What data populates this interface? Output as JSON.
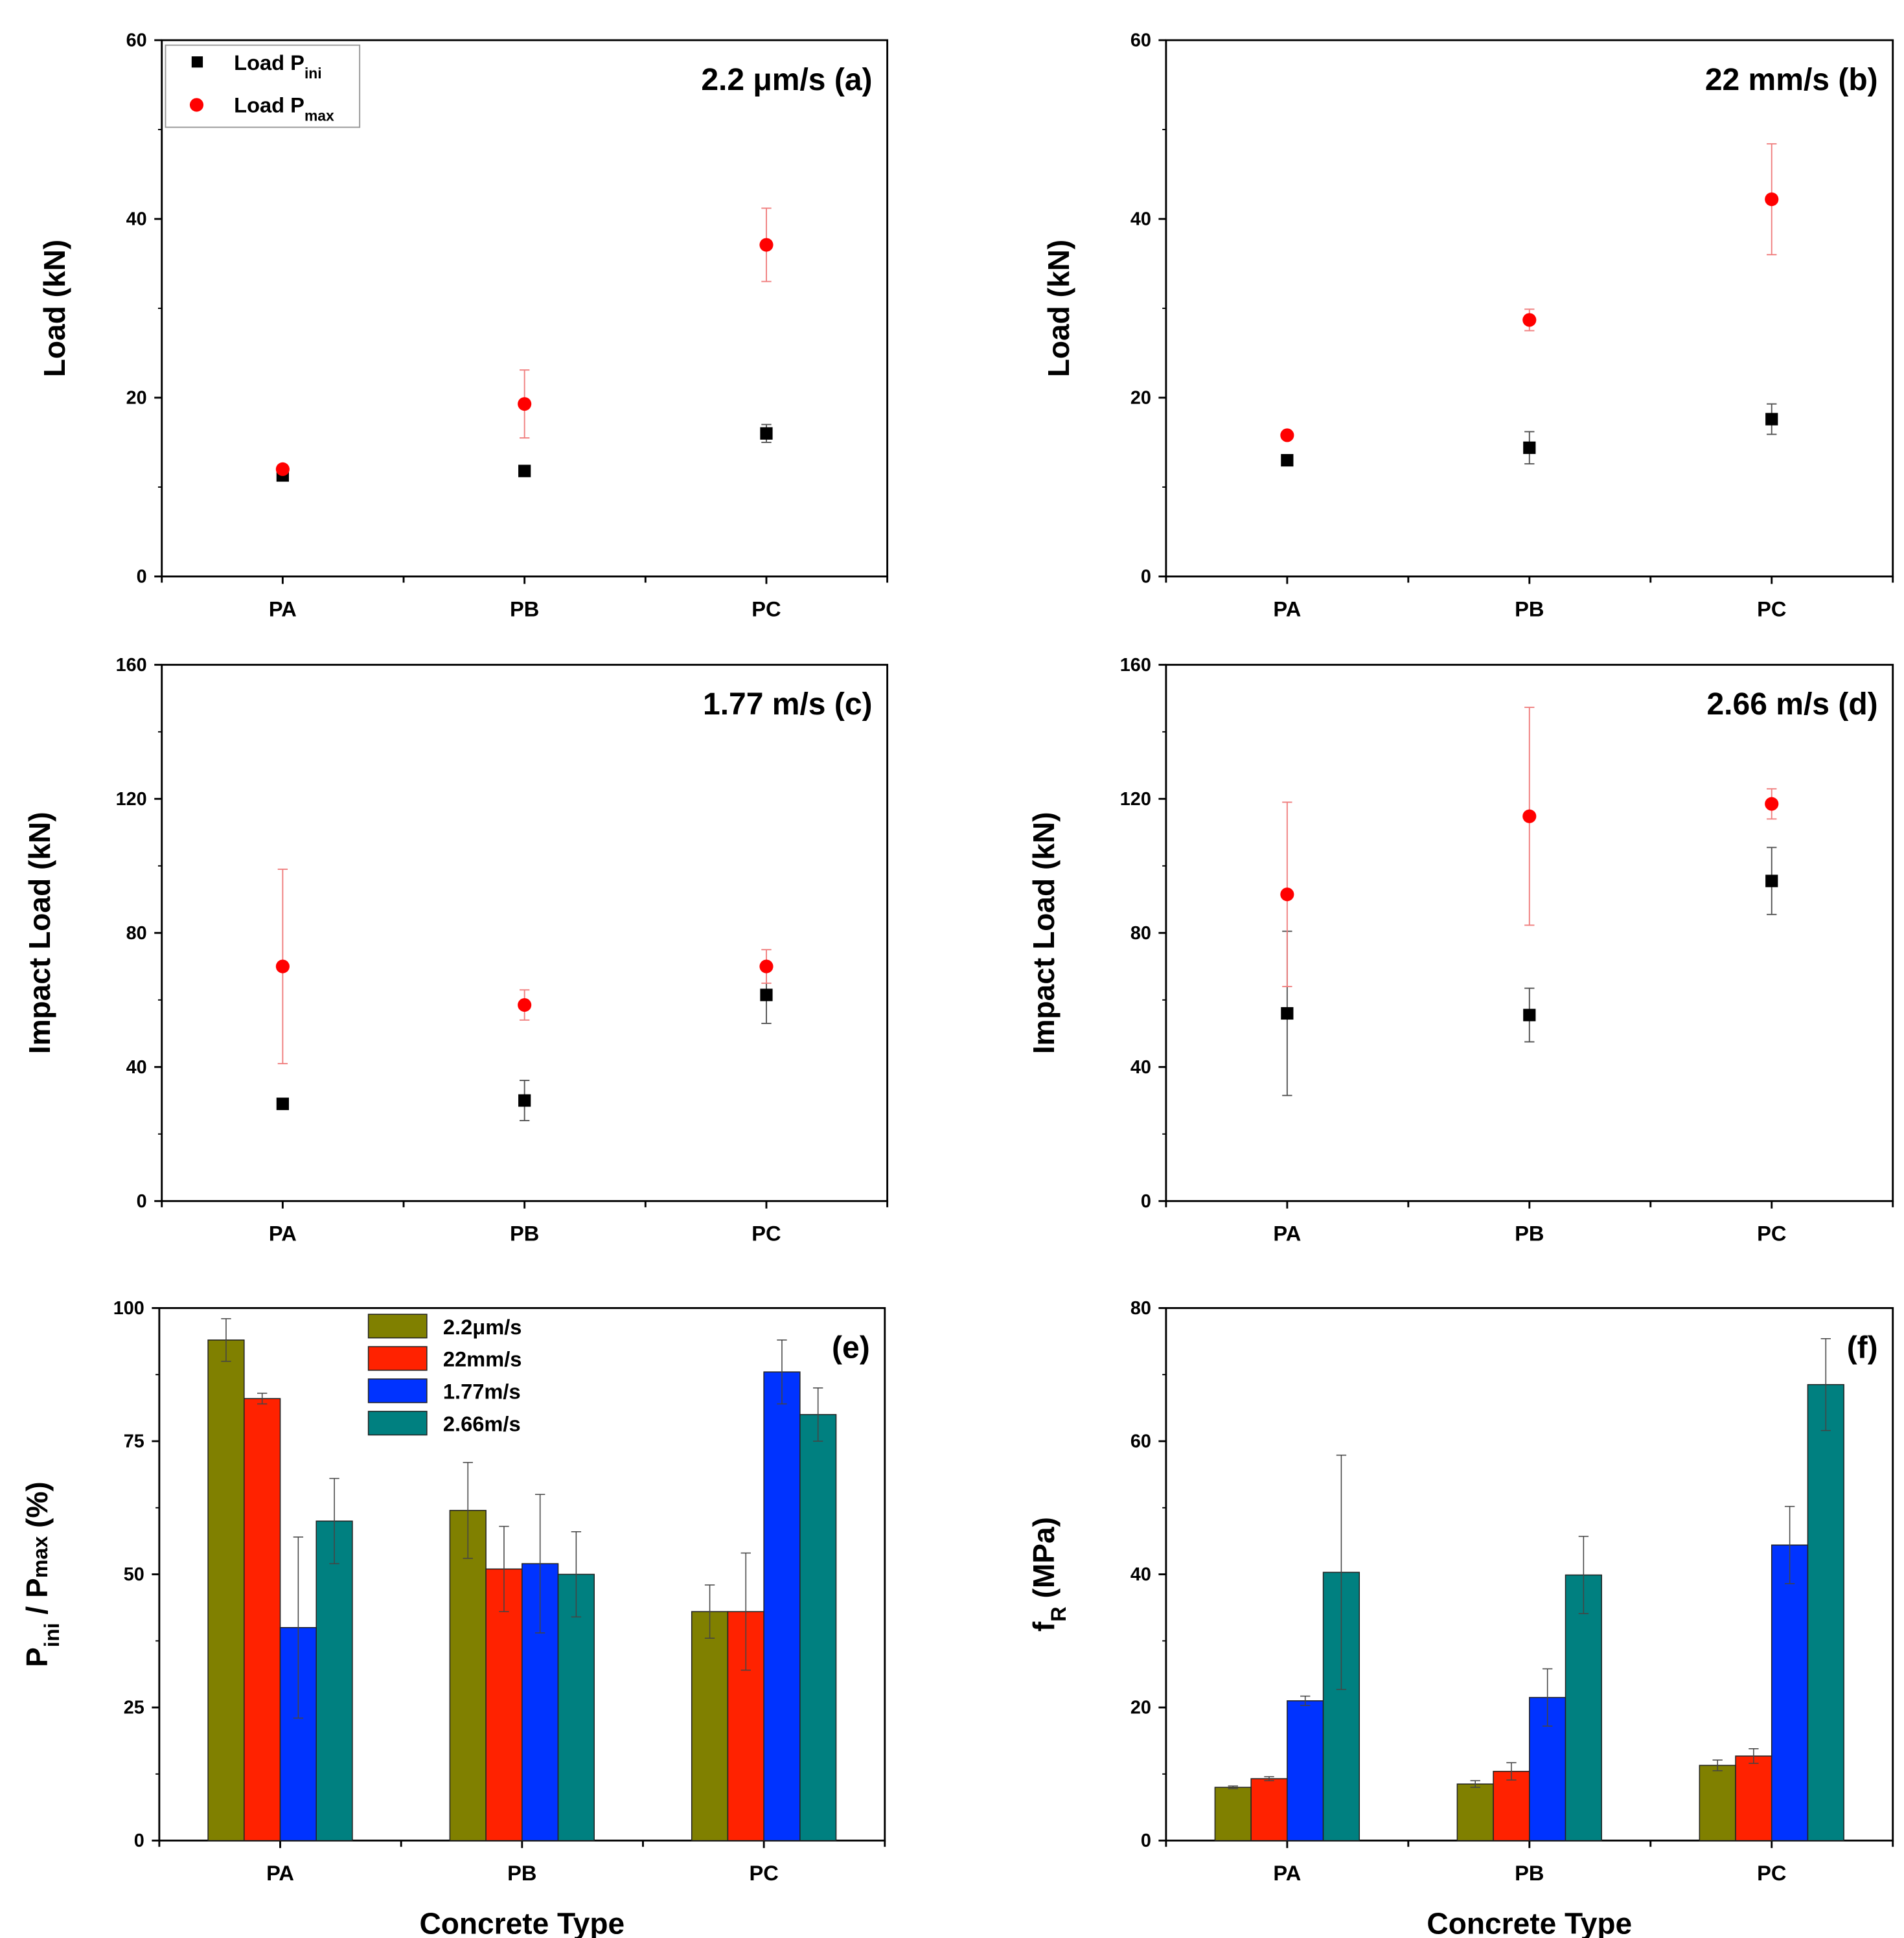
{
  "colors": {
    "ini": "#000000",
    "max": "#ff0000",
    "bar_0": "#808000",
    "bar_1": "#ff2200",
    "bar_2": "#0033ff",
    "bar_3": "#008080"
  },
  "chart_data": [
    {
      "id": "a",
      "type": "scatter",
      "annotation": "2.2 μm/s (a)",
      "ylabel": "Load (kN)",
      "xlabel": "",
      "ylim": [
        0,
        60
      ],
      "yticks": [
        "0",
        "20",
        "40",
        "60"
      ],
      "categories": [
        "PA",
        "PB",
        "PC"
      ],
      "legend": {
        "placement": "top-left",
        "entries": [
          {
            "base": "Load P",
            "sub": "ini"
          },
          {
            "base": "Load P",
            "sub": "max"
          }
        ]
      },
      "series": [
        {
          "name": "Load P_ini",
          "values": [
            11.3,
            11.8,
            16.0
          ],
          "errors": [
            0.3,
            0.4,
            1.0
          ]
        },
        {
          "name": "Load P_max",
          "values": [
            12.0,
            19.3,
            37.1
          ],
          "errors": [
            0.3,
            3.8,
            4.1
          ]
        }
      ]
    },
    {
      "id": "b",
      "type": "scatter",
      "annotation": "22 mm/s (b)",
      "ylabel": "Load (kN)",
      "xlabel": "",
      "ylim": [
        0,
        60
      ],
      "yticks": [
        "0",
        "20",
        "40",
        "60"
      ],
      "categories": [
        "PA",
        "PB",
        "PC"
      ],
      "series": [
        {
          "name": "Load P_ini",
          "values": [
            13.0,
            14.4,
            17.6
          ],
          "errors": [
            0.3,
            1.8,
            1.7
          ]
        },
        {
          "name": "Load P_max",
          "values": [
            15.8,
            28.7,
            42.2
          ],
          "errors": [
            0.3,
            1.2,
            6.2
          ]
        }
      ]
    },
    {
      "id": "c",
      "type": "scatter",
      "annotation": "1.77 m/s (c)",
      "ylabel": "Impact Load (kN)",
      "xlabel": "",
      "ylim": [
        0,
        160
      ],
      "yticks": [
        "0",
        "40",
        "80",
        "120",
        "160"
      ],
      "categories": [
        "PA",
        "PB",
        "PC"
      ],
      "series": [
        {
          "name": "Load P_ini",
          "values": [
            29,
            30,
            61.5
          ],
          "errors": [
            0.5,
            6,
            8.5
          ]
        },
        {
          "name": "Load P_max",
          "values": [
            70,
            58.5,
            70
          ],
          "errors": [
            29,
            4.5,
            5
          ]
        }
      ]
    },
    {
      "id": "d",
      "type": "scatter",
      "annotation": "2.66 m/s (d)",
      "ylabel": "Impact Load (kN)",
      "xlabel": "",
      "ylim": [
        0,
        160
      ],
      "yticks": [
        "0",
        "40",
        "80",
        "120",
        "160"
      ],
      "categories": [
        "PA",
        "PB",
        "PC"
      ],
      "series": [
        {
          "name": "Load P_ini",
          "values": [
            56,
            55.5,
            95.5
          ],
          "errors": [
            24.5,
            8,
            10
          ]
        },
        {
          "name": "Load P_max",
          "values": [
            91.5,
            114.8,
            118.5
          ],
          "errors": [
            27.5,
            32.5,
            4.5
          ]
        }
      ]
    },
    {
      "id": "e",
      "type": "bar",
      "annotation": "(e)",
      "ylabel": {
        "p1": "P",
        "s1": "ini",
        "mid": " / P",
        "s2": "max",
        "end": " (%)"
      },
      "xlabel": "Concrete Type",
      "ylim": [
        0,
        100
      ],
      "yticks": [
        "0",
        "25",
        "50",
        "75",
        "100"
      ],
      "categories": [
        "PA",
        "PB",
        "PC"
      ],
      "legend": {
        "placement": "top-center",
        "entries": [
          "2.2μm/s",
          "22mm/s",
          "1.77m/s",
          "2.66m/s"
        ]
      },
      "series": [
        {
          "name": "2.2μm/s",
          "values": [
            94,
            62,
            43
          ],
          "errors": [
            4,
            9,
            5
          ]
        },
        {
          "name": "22mm/s",
          "values": [
            83,
            51,
            43
          ],
          "errors": [
            1,
            8,
            11
          ]
        },
        {
          "name": "1.77m/s",
          "values": [
            40,
            52,
            88
          ],
          "errors": [
            17,
            13,
            6
          ]
        },
        {
          "name": "2.66m/s",
          "values": [
            60,
            50,
            80
          ],
          "errors": [
            8,
            8,
            5
          ]
        }
      ]
    },
    {
      "id": "f",
      "type": "bar",
      "annotation": "(f)",
      "ylabel": {
        "p1": "f",
        "s1": "R",
        "end": " (MPa)"
      },
      "xlabel": "Concrete Type",
      "ylim": [
        0,
        80
      ],
      "yticks": [
        "0",
        "20",
        "40",
        "60",
        "80"
      ],
      "categories": [
        "PA",
        "PB",
        "PC"
      ],
      "series": [
        {
          "name": "2.2μm/s",
          "values": [
            8.0,
            8.5,
            11.3
          ],
          "errors": [
            0.2,
            0.5,
            0.8
          ]
        },
        {
          "name": "22mm/s",
          "values": [
            9.3,
            10.4,
            12.7
          ],
          "errors": [
            0.3,
            1.3,
            1.1
          ]
        },
        {
          "name": "1.77m/s",
          "values": [
            21.0,
            21.5,
            44.4
          ],
          "errors": [
            0.7,
            4.3,
            5.8
          ]
        },
        {
          "name": "2.66m/s",
          "values": [
            40.3,
            39.9,
            68.5
          ],
          "errors": [
            17.6,
            5.8,
            6.9
          ]
        }
      ]
    }
  ]
}
